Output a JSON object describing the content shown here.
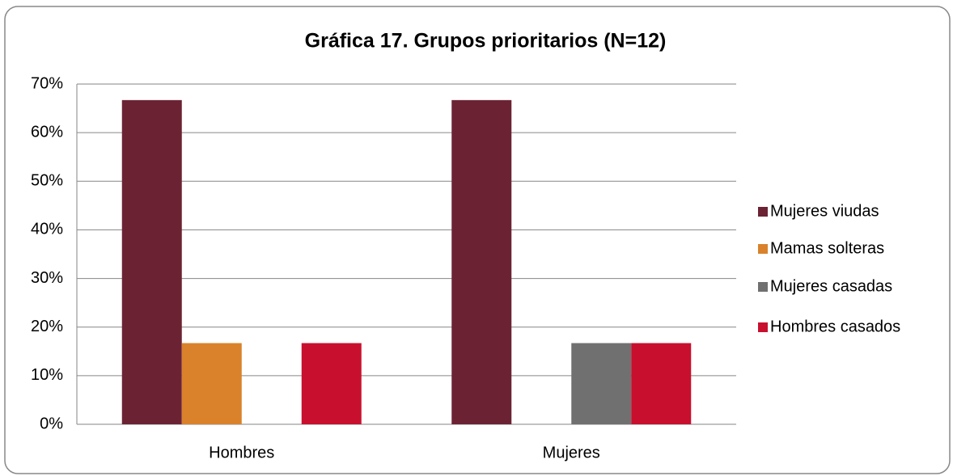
{
  "chart_data": {
    "type": "bar",
    "title": "Gráfica 17. Grupos prioritarios (N=12)",
    "categories": [
      "Hombres",
      "Mujeres"
    ],
    "series": [
      {
        "name": "Mujeres viudas",
        "color": "#6b2334",
        "values": [
          66.7,
          66.7
        ]
      },
      {
        "name": "Mamas solteras",
        "color": "#d9822b",
        "values": [
          16.7,
          0
        ]
      },
      {
        "name": "Mujeres casadas",
        "color": "#707070",
        "values": [
          0,
          16.7
        ]
      },
      {
        "name": "Hombres casados",
        "color": "#c8102e",
        "values": [
          16.7,
          16.7
        ]
      }
    ],
    "ylim": [
      0,
      70
    ],
    "yticks": [
      {
        "value": 0,
        "label": "0%"
      },
      {
        "value": 10,
        "label": "10%"
      },
      {
        "value": 20,
        "label": "20%"
      },
      {
        "value": 30,
        "label": "30%"
      },
      {
        "value": 40,
        "label": "40%"
      },
      {
        "value": 50,
        "label": "50%"
      },
      {
        "value": 60,
        "label": "60%"
      },
      {
        "value": 70,
        "label": "70%"
      }
    ],
    "grid": true,
    "legend": "right"
  }
}
